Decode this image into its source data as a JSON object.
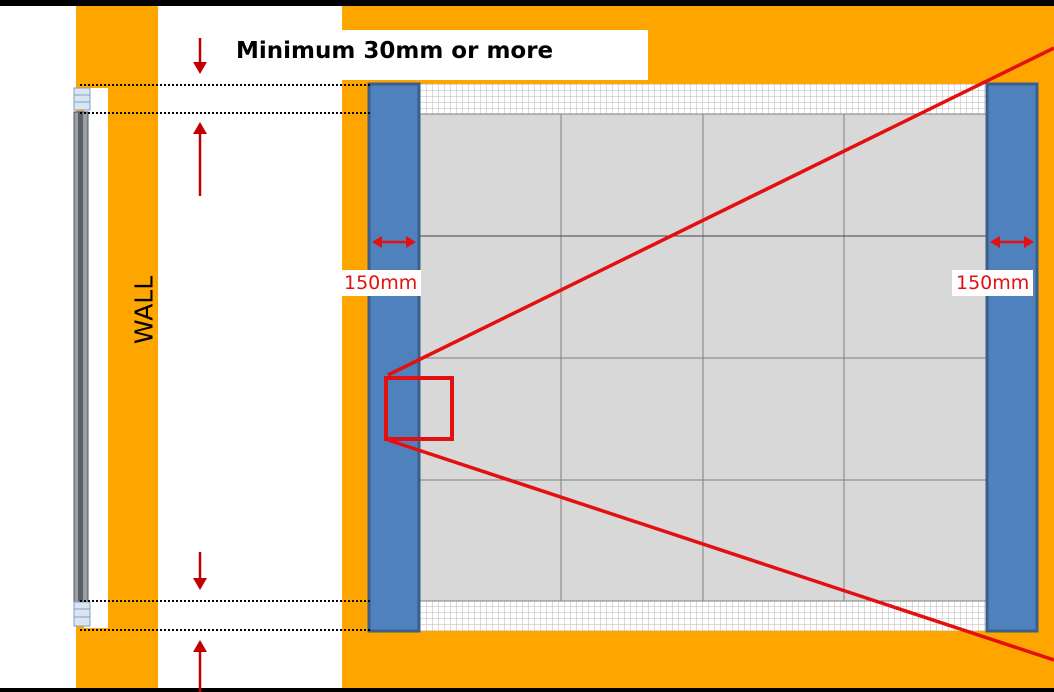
{
  "labels": {
    "title": "Minimum 30mm or more",
    "wall": "WALL",
    "left_width": "150mm",
    "right_width": "150mm"
  },
  "colors": {
    "background_orange": "#ffa500",
    "column_blue": "#4f81bd",
    "column_border": "#3b5f8c",
    "screen_gray": "#d8d8d8",
    "accent_red": "#e41010",
    "arrow_dark_red": "#c00000"
  },
  "screen_grid": {
    "rows": 4,
    "columns": 4
  }
}
